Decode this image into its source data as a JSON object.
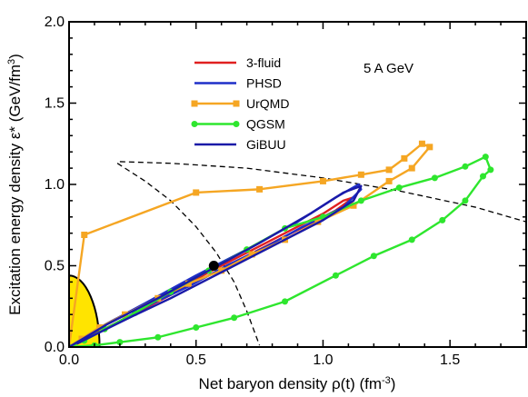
{
  "chart_data": {
    "type": "line",
    "annotation": "5 A GeV",
    "xlabel": {
      "text": "Net baryon density ρ(t) (fm",
      "sup": "-3",
      "suffix": ")"
    },
    "ylabel": {
      "text": "Excitation energy density ε* (GeV/fm",
      "sup": "3",
      "suffix": ")"
    },
    "xlim": [
      0,
      1.8
    ],
    "ylim": [
      0,
      2.0
    ],
    "xticks": [
      "0.0",
      "0.5",
      "1.0",
      "1.5"
    ],
    "yticks": [
      "0.0",
      "0.5",
      "1.0",
      "1.5",
      "2.0"
    ],
    "xtick_values": [
      0,
      0.5,
      1.0,
      1.5
    ],
    "ytick_values": [
      0,
      0.5,
      1.0,
      1.5,
      2.0
    ],
    "legend_position": "top-left",
    "series": [
      {
        "name": "3-fluid",
        "color": "#e02020",
        "marker": "none",
        "x": [
          0.0,
          0.1,
          0.25,
          0.4,
          0.55,
          0.7,
          0.85,
          1.0,
          1.08,
          1.12,
          1.05,
          0.9,
          0.75,
          0.6,
          0.45,
          0.3,
          0.15,
          0.03
        ],
        "y": [
          0.0,
          0.08,
          0.2,
          0.33,
          0.46,
          0.58,
          0.7,
          0.82,
          0.9,
          0.92,
          0.84,
          0.72,
          0.6,
          0.48,
          0.36,
          0.24,
          0.12,
          0.02
        ]
      },
      {
        "name": "PHSD",
        "color": "#1f2fc8",
        "marker": "none",
        "x": [
          0.0,
          0.12,
          0.3,
          0.5,
          0.7,
          0.9,
          1.05,
          1.14,
          1.15,
          1.08,
          0.92,
          0.78,
          0.62,
          0.48,
          0.33,
          0.2,
          0.08,
          0.01
        ],
        "y": [
          0.0,
          0.12,
          0.27,
          0.44,
          0.6,
          0.77,
          0.92,
          1.0,
          0.97,
          0.86,
          0.74,
          0.62,
          0.5,
          0.38,
          0.27,
          0.16,
          0.06,
          0.01
        ]
      },
      {
        "name": "UrQMD",
        "color": "#f5a623",
        "marker": "square",
        "x": [
          0.0,
          0.06,
          0.5,
          0.75,
          1.0,
          1.15,
          1.26,
          1.32,
          1.39,
          1.42,
          1.35,
          1.26,
          1.12,
          0.98,
          0.85,
          0.72,
          0.6,
          0.47,
          0.35,
          0.22,
          0.12,
          0.05,
          0.0
        ],
        "y": [
          0.0,
          0.69,
          0.95,
          0.97,
          1.02,
          1.06,
          1.09,
          1.16,
          1.25,
          1.23,
          1.1,
          1.02,
          0.87,
          0.77,
          0.66,
          0.57,
          0.47,
          0.39,
          0.3,
          0.2,
          0.12,
          0.05,
          0.0
        ]
      },
      {
        "name": "QGSM",
        "color": "#2ee62e",
        "marker": "circle",
        "x": [
          0.0,
          0.1,
          0.2,
          0.35,
          0.5,
          0.65,
          0.85,
          1.05,
          1.2,
          1.35,
          1.47,
          1.56,
          1.63,
          1.66,
          1.64,
          1.56,
          1.44,
          1.3,
          1.15,
          1.0,
          0.85,
          0.7,
          0.55,
          0.4,
          0.26,
          0.14,
          0.06,
          0.0
        ],
        "y": [
          0.0,
          0.01,
          0.03,
          0.06,
          0.12,
          0.18,
          0.28,
          0.44,
          0.56,
          0.66,
          0.78,
          0.9,
          1.05,
          1.09,
          1.17,
          1.11,
          1.04,
          0.98,
          0.9,
          0.8,
          0.73,
          0.6,
          0.47,
          0.34,
          0.21,
          0.11,
          0.04,
          0.0
        ]
      },
      {
        "name": "GiBUU",
        "color": "#1a1aa8",
        "marker": "none",
        "x": [
          0.0,
          0.15,
          0.35,
          0.55,
          0.75,
          0.95,
          1.08,
          1.15,
          1.12,
          1.0,
          0.85,
          0.7,
          0.55,
          0.4,
          0.25,
          0.12,
          0.03
        ],
        "y": [
          0.0,
          0.14,
          0.3,
          0.47,
          0.64,
          0.82,
          0.95,
          0.99,
          0.9,
          0.78,
          0.66,
          0.54,
          0.42,
          0.3,
          0.19,
          0.09,
          0.02
        ]
      }
    ],
    "dashed_curves": [
      {
        "x": [
          0.2,
          0.4,
          0.7,
          1.0,
          1.3,
          1.6,
          1.8
        ],
        "y": [
          1.14,
          1.13,
          1.1,
          1.04,
          0.96,
          0.86,
          0.77
        ]
      },
      {
        "x": [
          0.19,
          0.3,
          0.4,
          0.5,
          0.58,
          0.65,
          0.7,
          0.75
        ],
        "y": [
          1.13,
          1.02,
          0.9,
          0.74,
          0.58,
          0.4,
          0.22,
          0.01
        ]
      }
    ],
    "point": {
      "x": 0.57,
      "y": 0.5,
      "color": "#000000"
    },
    "shaded_region": {
      "color": "#ffe400",
      "x_radius": 0.12,
      "y_radius": 0.44
    }
  }
}
